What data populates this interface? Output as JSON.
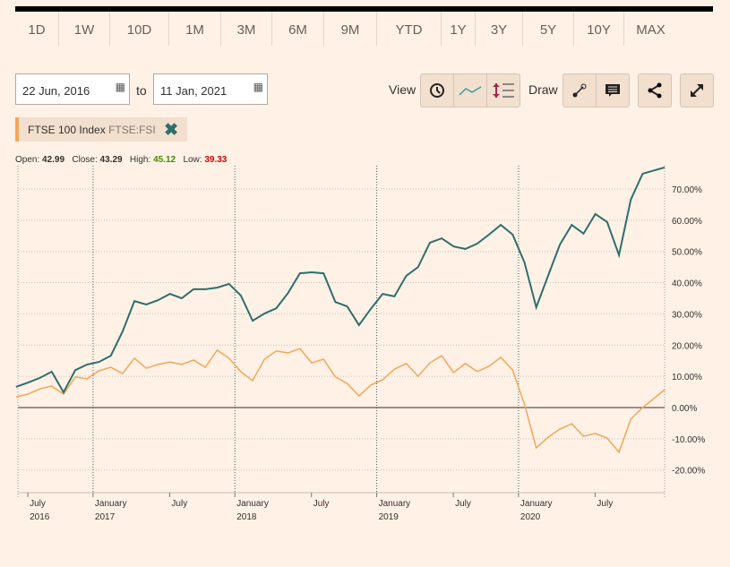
{
  "ranges": [
    "1D",
    "1W",
    "10D",
    "1M",
    "3M",
    "6M",
    "9M",
    "YTD",
    "1Y",
    "3Y",
    "5Y",
    "10Y",
    "MAX"
  ],
  "date_from": "22 Jun, 2016",
  "date_to": "11 Jan, 2021",
  "to_label": "to",
  "view_label": "View",
  "draw_label": "Draw",
  "icons": {
    "view": [
      "clock-icon",
      "line-chart-icon",
      "scale-icon"
    ],
    "draw": [
      "line-draw-icon",
      "comment-icon"
    ],
    "share": "share-icon",
    "expand": "expand-icon"
  },
  "instrument": {
    "name": "FTSE 100 Index",
    "code": "FTSE:FSI"
  },
  "stats": {
    "open_label": "Open:",
    "open": "42.99",
    "close_label": "Close:",
    "close": "43.29",
    "high_label": "High:",
    "high": "45.12",
    "low_label": "Low:",
    "low": "39.33",
    "high_color": "#458b00",
    "low_color": "#cc0000"
  },
  "chart_data": {
    "type": "line",
    "ylim": [
      -25,
      78
    ],
    "y_ticks": [
      "70.00%",
      "60.00%",
      "50.00%",
      "40.00%",
      "30.00%",
      "20.00%",
      "10.00%",
      "0.00%",
      "-10.00%",
      "-20.00%"
    ],
    "y_tick_values": [
      70,
      60,
      50,
      40,
      30,
      20,
      10,
      0,
      -10,
      -20
    ],
    "x_ticks": [
      {
        "date": "2016-07",
        "label": "July",
        "sub": "2016"
      },
      {
        "date": "2017-01",
        "label": "January",
        "sub": "2017"
      },
      {
        "date": "2017-07",
        "label": "July",
        "sub": ""
      },
      {
        "date": "2018-01",
        "label": "January",
        "sub": "2018"
      },
      {
        "date": "2018-07",
        "label": "July",
        "sub": ""
      },
      {
        "date": "2019-01",
        "label": "January",
        "sub": "2019"
      },
      {
        "date": "2019-07",
        "label": "July",
        "sub": ""
      },
      {
        "date": "2020-01",
        "label": "January",
        "sub": "2020"
      },
      {
        "date": "2020-07",
        "label": "July",
        "sub": ""
      }
    ],
    "grid": true,
    "series": [
      {
        "color": "#2e6e6e",
        "values": [
          6.6,
          8.0,
          9.5,
          11.5,
          4.9,
          12.0,
          13.8,
          14.6,
          16.6,
          24.4,
          34.1,
          33.0,
          34.4,
          36.4,
          35.0,
          37.9,
          37.9,
          38.4,
          39.6,
          35.9,
          27.8,
          30.1,
          31.8,
          36.7,
          43.0,
          43.3,
          43.0,
          33.8,
          32.4,
          26.4,
          31.6,
          36.4,
          35.6,
          42.2,
          45.0,
          52.8,
          54.2,
          51.6,
          50.8,
          52.5,
          55.4,
          58.5,
          55.4,
          46.5,
          32.1,
          42.2,
          52.2,
          58.5,
          55.7,
          62.0,
          59.4,
          48.8,
          66.6,
          74.9,
          76.9
        ]
      },
      {
        "color": "#f2a65a",
        "values": [
          3.4,
          4.3,
          6.0,
          6.9,
          4.3,
          9.8,
          9.2,
          11.8,
          12.9,
          10.9,
          15.8,
          12.6,
          13.8,
          14.6,
          13.8,
          15.2,
          12.9,
          18.4,
          15.8,
          11.5,
          8.6,
          15.5,
          18.1,
          17.5,
          18.9,
          14.3,
          15.5,
          9.8,
          7.7,
          3.7,
          7.2,
          8.9,
          12.3,
          14.1,
          10.0,
          14.3,
          16.6,
          11.2,
          14.1,
          11.5,
          13.2,
          16.1,
          12.0,
          1.1,
          -12.9,
          -9.5,
          -6.9,
          -5.2,
          -9.2,
          -8.3,
          -9.8,
          -14.3,
          -3.7,
          0,
          5.7
        ]
      }
    ],
    "x_start": "2016-06-22",
    "x_end": "2021-01-11"
  }
}
